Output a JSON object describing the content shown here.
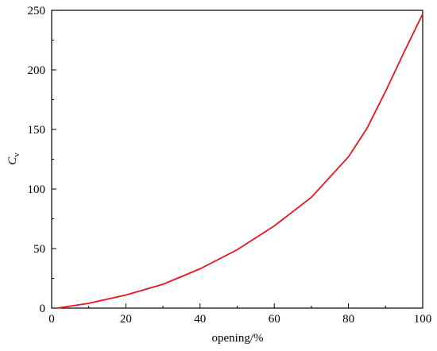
{
  "chart_data": {
    "type": "line",
    "x_label": "opening/%",
    "y_label": "C",
    "y_label_subscript": "v",
    "series": [
      {
        "name": "Cv",
        "color": "#e8141c",
        "x": [
          1.5,
          10,
          20,
          30,
          40,
          50,
          60,
          70,
          80,
          85,
          90,
          95,
          100
        ],
        "values": [
          0,
          4,
          11,
          20,
          33,
          49,
          69,
          93,
          127,
          151,
          182,
          215,
          247
        ]
      }
    ],
    "xlim": [
      0,
      100
    ],
    "xticks": [
      0,
      20,
      40,
      60,
      80,
      100
    ],
    "xminor_ticks": [
      10,
      30,
      50,
      70,
      90
    ],
    "ylim": [
      0,
      250
    ],
    "yticks": [
      0,
      50,
      100,
      150,
      200,
      250
    ],
    "yminor_ticks": [
      25,
      75,
      125,
      175,
      225
    ]
  }
}
